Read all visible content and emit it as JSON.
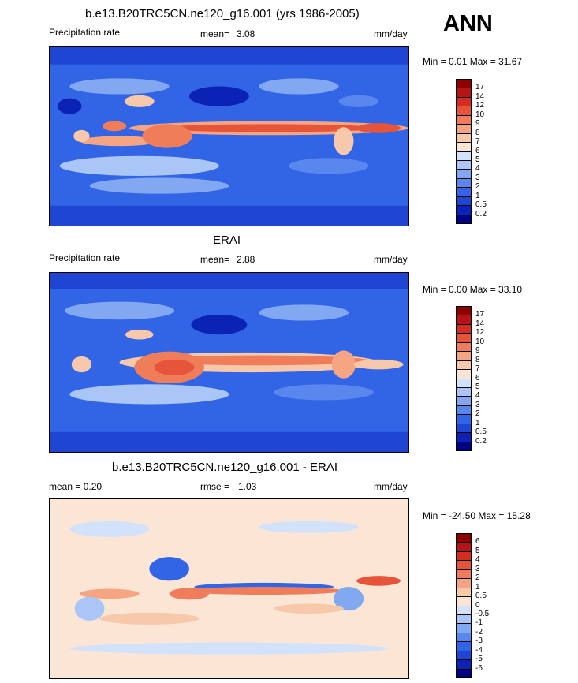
{
  "season": "ANN",
  "colors": {
    "abs_scale": [
      "#000080",
      "#0a23b4",
      "#1e46d2",
      "#3264e6",
      "#5a87ee",
      "#82a8f2",
      "#aac6f6",
      "#d2e2fa",
      "#fbe6d6",
      "#f8c8aa",
      "#f5a582",
      "#f07d5a",
      "#e6553a",
      "#d22d1e",
      "#b41414",
      "#8c0000"
    ],
    "diff_scale": [
      "#000080",
      "#0a23b4",
      "#1e46d2",
      "#3264e6",
      "#5a87ee",
      "#82a8f2",
      "#aac6f6",
      "#d2e2fa",
      "#fbe6d6",
      "#f8c8aa",
      "#f5a582",
      "#f07d5a",
      "#e6553a",
      "#d22d1e",
      "#b41414",
      "#8c0000"
    ]
  },
  "panels": [
    {
      "title": "b.e13.B20TRC5CN.ne120_g16.001 (yrs 1986-2005)",
      "left_label": "Precipitation rate",
      "stat_label": "mean=",
      "stat_value": "3.08",
      "units": "mm/day",
      "minmax": "Min =   0.01 Max =  31.67"
    },
    {
      "title": "ERAI",
      "left_label": "Precipitation rate",
      "stat_label": "mean=",
      "stat_value": "2.88",
      "units": "mm/day",
      "minmax": "Min =   0.00 Max =  33.10"
    },
    {
      "title": "b.e13.B20TRC5CN.ne120_g16.001 - ERAI",
      "left_label": "mean =   0.20",
      "stat_label": "rmse =",
      "stat_value": "1.03",
      "units": "mm/day",
      "minmax": "Min = -24.50 Max =  15.28"
    }
  ],
  "chart_data": [
    {
      "type": "heatmap",
      "title": "b.e13.B20TRC5CN.ne120_g16.001 (yrs 1986-2005)",
      "variable": "Precipitation rate",
      "units": "mm/day",
      "mean": 3.08,
      "min": 0.01,
      "max": 31.67,
      "colorbar_levels": [
        "0.2",
        "0.5",
        "1",
        "2",
        "3",
        "4",
        "5",
        "6",
        "7",
        "8",
        "9",
        "10",
        "12",
        "14",
        "17"
      ]
    },
    {
      "type": "heatmap",
      "title": "ERAI",
      "variable": "Precipitation rate",
      "units": "mm/day",
      "mean": 2.88,
      "min": 0.0,
      "max": 33.1,
      "colorbar_levels": [
        "0.2",
        "0.5",
        "1",
        "2",
        "3",
        "4",
        "5",
        "6",
        "7",
        "8",
        "9",
        "10",
        "12",
        "14",
        "17"
      ]
    },
    {
      "type": "heatmap",
      "title": "b.e13.B20TRC5CN.ne120_g16.001 - ERAI",
      "units": "mm/day",
      "mean": 0.2,
      "rmse": 1.03,
      "min": -24.5,
      "max": 15.28,
      "colorbar_levels": [
        "-6",
        "-5",
        "-4",
        "-3",
        "-2",
        "-1",
        "-0.5",
        "0",
        "0.5",
        "1",
        "2",
        "3",
        "4",
        "5",
        "6"
      ]
    }
  ]
}
